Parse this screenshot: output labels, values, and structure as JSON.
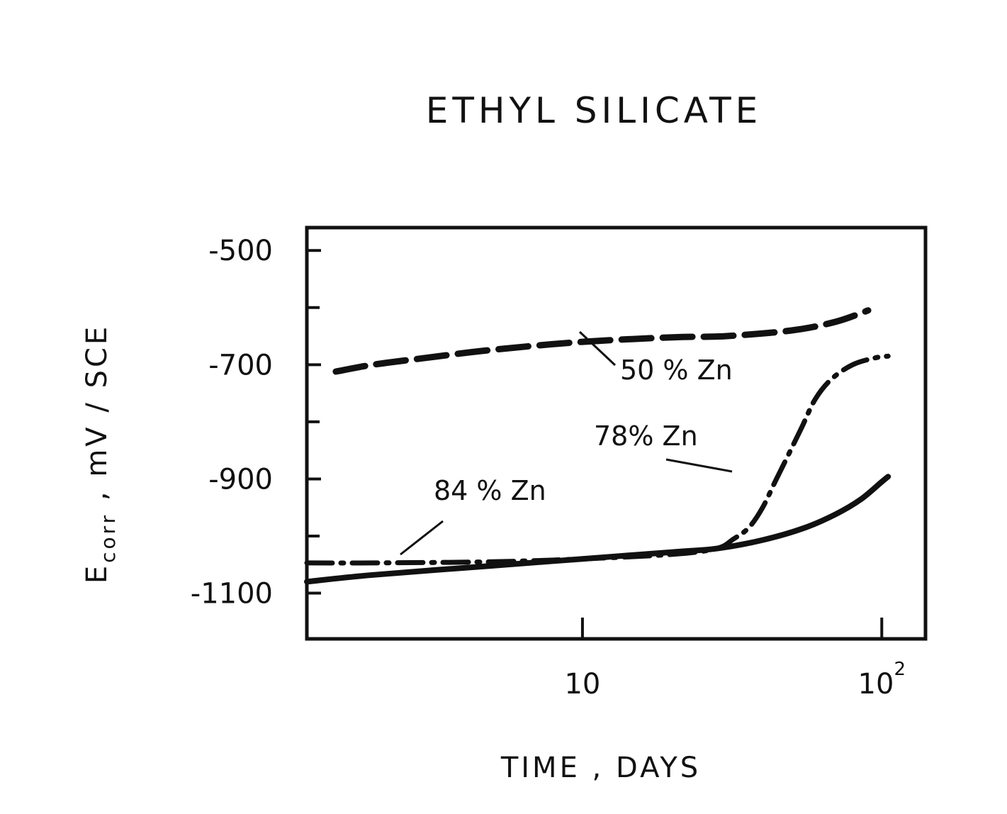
{
  "chart_data": {
    "type": "line",
    "title": "ETHYL SILICATE",
    "xlabel": "TIME , DAYS",
    "ylabel_main": "E",
    "ylabel_sub": "corr",
    "ylabel_rest": " , mV / SCE",
    "x_scale": "log",
    "xlim": [
      1.2,
      140
    ],
    "ylim": [
      -1180,
      -460
    ],
    "x_ticks": [
      {
        "value": 10,
        "base": "10",
        "exp": ""
      },
      {
        "value": 100,
        "base": "10",
        "exp": "2"
      }
    ],
    "y_ticks": [
      {
        "value": -500,
        "label": "-500"
      },
      {
        "value": -700,
        "label": "-700"
      },
      {
        "value": -900,
        "label": "-900"
      },
      {
        "value": -1100,
        "label": "-1100"
      }
    ],
    "y_minor_ticks": [
      -600,
      -800,
      -1000
    ],
    "grid": false,
    "series": [
      {
        "name": "50 % Zn",
        "style": "dashed",
        "x": [
          1.5,
          2,
          3,
          5,
          10,
          20,
          30,
          50,
          70,
          90
        ],
        "y": [
          -712,
          -700,
          -688,
          -674,
          -660,
          -652,
          -650,
          -640,
          -625,
          -605
        ]
      },
      {
        "name": "78% Zn",
        "style": "dashdot",
        "x": [
          1.2,
          2,
          5,
          10,
          20,
          28,
          32,
          36,
          40,
          44,
          48,
          54,
          60,
          68,
          80,
          95,
          105
        ],
        "y": [
          -1047,
          -1047,
          -1045,
          -1040,
          -1032,
          -1022,
          -1005,
          -985,
          -950,
          -905,
          -865,
          -810,
          -760,
          -725,
          -700,
          -688,
          -685
        ]
      },
      {
        "name": "84 % Zn",
        "style": "solid",
        "x": [
          1.2,
          2,
          5,
          10,
          20,
          28,
          40,
          55,
          70,
          85,
          100,
          105
        ],
        "y": [
          -1080,
          -1068,
          -1052,
          -1040,
          -1028,
          -1022,
          -1007,
          -986,
          -962,
          -936,
          -905,
          -896
        ]
      }
    ],
    "annotations": [
      {
        "series": "50 % Zn",
        "text": "50 % Zn"
      },
      {
        "series": "78% Zn",
        "text": "78% Zn"
      },
      {
        "series": "84 % Zn",
        "text": "84 % Zn"
      }
    ]
  }
}
